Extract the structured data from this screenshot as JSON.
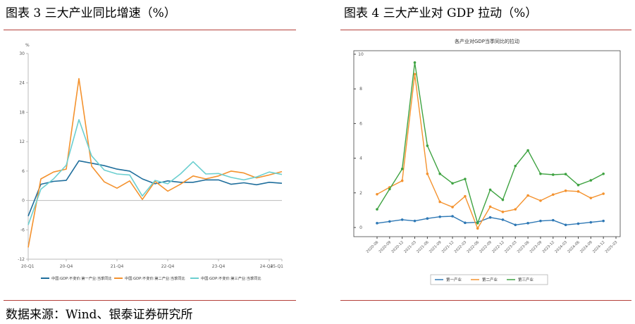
{
  "left_figure": {
    "title": "图表 3  三大产业同比增速（%）"
  },
  "right_figure": {
    "title": "图表 4  三大产业对 GDP 拉动（%）"
  },
  "source": "数据来源：Wind、银泰证券研究所",
  "chart_data": [
    {
      "type": "line",
      "title": "",
      "ylabel": "%",
      "xlabel": "",
      "ylim": [
        -12,
        30
      ],
      "yticks": [
        -12,
        -6,
        0,
        6,
        12,
        18,
        24,
        30
      ],
      "xticks": [
        "20-Q1",
        "20-Q4",
        "21-Q4",
        "22-Q4",
        "23-Q4",
        "24-Q4",
        "25-Q1"
      ],
      "x": [
        "20-Q1",
        "20-Q2",
        "20-Q3",
        "20-Q4",
        "21-Q1",
        "21-Q2",
        "21-Q3",
        "21-Q4",
        "22-Q1",
        "22-Q2",
        "22-Q3",
        "22-Q4",
        "23-Q1",
        "23-Q2",
        "23-Q3",
        "23-Q4",
        "24-Q1",
        "24-Q2",
        "24-Q3",
        "24-Q4",
        "25-Q1"
      ],
      "grid": false,
      "legend_position": "bottom",
      "series": [
        {
          "name": "中国:GDP:不变价:第一产业:当季同比",
          "color": "#1f6e9c",
          "values": [
            -3.2,
            3.3,
            3.9,
            4.1,
            8.1,
            7.6,
            7.1,
            6.4,
            6.0,
            4.4,
            3.4,
            4.0,
            3.7,
            3.7,
            4.2,
            4.2,
            3.3,
            3.6,
            3.2,
            3.7,
            3.5
          ]
        },
        {
          "name": "中国:GDP:不变价:第二产业:当季同比",
          "color": "#f4922e",
          "values": [
            -9.6,
            4.4,
            5.8,
            6.4,
            24.9,
            7.0,
            3.8,
            2.5,
            4.0,
            0.2,
            3.9,
            1.9,
            3.3,
            5.0,
            4.4,
            5.0,
            6.0,
            5.6,
            4.6,
            5.2,
            5.9
          ]
        },
        {
          "name": "中国:GDP:不变价:第三产业:当季同比",
          "color": "#6ccfd0",
          "values": [
            -5.0,
            2.3,
            4.4,
            7.2,
            16.5,
            9.1,
            6.2,
            5.4,
            5.2,
            0.9,
            4.1,
            3.4,
            5.4,
            7.9,
            5.4,
            5.5,
            4.7,
            4.2,
            4.8,
            5.8,
            5.3
          ]
        }
      ]
    },
    {
      "type": "line",
      "title": "各产业对GDP当季同比的拉动",
      "ylabel": "",
      "xlabel": "",
      "ylim": [
        0,
        10
      ],
      "yticks": [
        0,
        2,
        4,
        6,
        8,
        10
      ],
      "x": [
        "2020-06",
        "2020-09",
        "2020-12",
        "2021-03",
        "2021-06",
        "2021-09",
        "2021-12",
        "2022-03",
        "2022-06",
        "2022-09",
        "2022-12",
        "2023-03",
        "2023-06",
        "2023-09",
        "2023-12",
        "2024-03",
        "2024-06",
        "2024-09",
        "2024-12"
      ],
      "xticks": [
        "2020-06",
        "2020-09",
        "2020-12",
        "2021-03",
        "2021-06",
        "2021-09",
        "2021-12",
        "2022-03",
        "2022-06",
        "2022-09",
        "2022-12",
        "2023-03",
        "2023-06",
        "2023-09",
        "2023-12",
        "2024-03",
        "2024-06",
        "2024-09",
        "2024-12",
        "2025-03"
      ],
      "grid": false,
      "legend_position": "bottom",
      "series": [
        {
          "name": "第一产业",
          "color": "#2e78b5",
          "values": [
            0.25,
            0.35,
            0.45,
            0.38,
            0.52,
            0.62,
            0.65,
            0.27,
            0.3,
            0.58,
            0.45,
            0.15,
            0.25,
            0.38,
            0.42,
            0.15,
            0.22,
            0.3,
            0.38
          ]
        },
        {
          "name": "第二产业",
          "color": "#f4922e",
          "values": [
            1.92,
            2.32,
            2.7,
            8.85,
            3.1,
            1.48,
            1.18,
            1.8,
            -0.05,
            1.2,
            0.9,
            1.05,
            1.85,
            1.55,
            1.9,
            2.12,
            2.08,
            1.7,
            1.95
          ]
        },
        {
          "name": "第三产业",
          "color": "#3fa342",
          "values": [
            1.05,
            2.22,
            3.38,
            9.52,
            4.72,
            3.1,
            2.55,
            2.8,
            0.25,
            2.18,
            1.6,
            3.55,
            4.45,
            3.1,
            3.05,
            3.08,
            2.45,
            2.72,
            3.1
          ]
        }
      ]
    }
  ]
}
